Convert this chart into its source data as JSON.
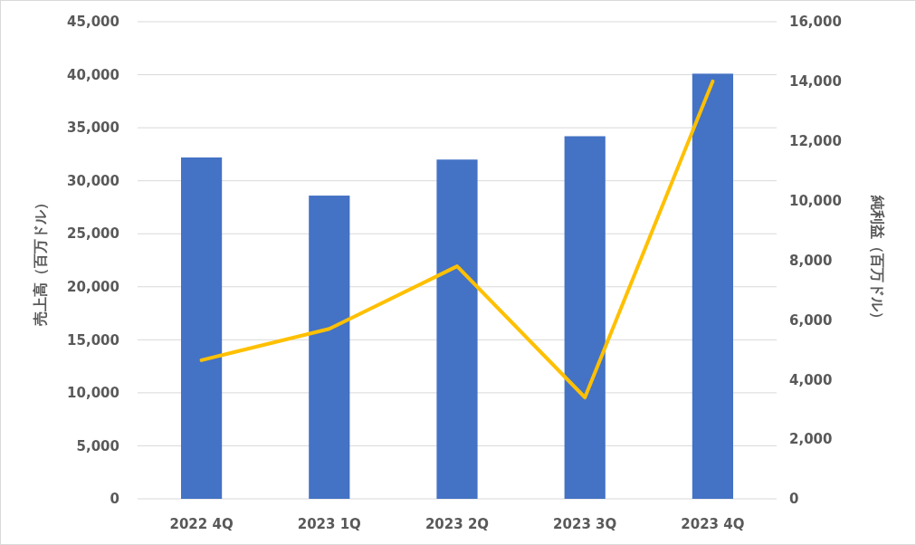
{
  "chart_data": {
    "type": "bar",
    "categories": [
      "2022 4Q",
      "2023 1Q",
      "2023 2Q",
      "2023 3Q",
      "2023 4Q"
    ],
    "ylabel": "売上高（百万ドル）",
    "y2label": "純利益（百万ドル）",
    "series": [
      {
        "color": "#4472c4",
        "values": [
          32200,
          28600,
          32000,
          34200,
          40100
        ]
      },
      {
        "type": "line",
        "axis": "y2",
        "color": "#ffc000",
        "values": [
          4650,
          5700,
          7800,
          3400,
          14000
        ]
      }
    ],
    "ylim": [
      0,
      45000
    ],
    "yticks": [
      {
        "value": 0,
        "label": "0"
      },
      {
        "value": 5000,
        "label": "5,000"
      },
      {
        "value": 10000,
        "label": "10,000"
      },
      {
        "value": 15000,
        "label": "15,000"
      },
      {
        "value": 20000,
        "label": "20,000"
      },
      {
        "value": 25000,
        "label": "25,000"
      },
      {
        "value": 30000,
        "label": "30,000"
      },
      {
        "value": 35000,
        "label": "35,000"
      },
      {
        "value": 40000,
        "label": "40,000"
      },
      {
        "value": 45000,
        "label": "45,000"
      }
    ],
    "y2lim": [
      0,
      16000
    ],
    "y2ticks": [
      {
        "value": 0,
        "label": "0"
      },
      {
        "value": 2000,
        "label": "2,000"
      },
      {
        "value": 4000,
        "label": "4,000"
      },
      {
        "value": 6000,
        "label": "6,000"
      },
      {
        "value": 8000,
        "label": "8,000"
      },
      {
        "value": 10000,
        "label": "10,000"
      },
      {
        "value": 12000,
        "label": "12,000"
      },
      {
        "value": 14000,
        "label": "14,000"
      },
      {
        "value": 16000,
        "label": "16,000"
      }
    ],
    "grid": "y",
    "line_style": "solid",
    "marker": "none"
  }
}
